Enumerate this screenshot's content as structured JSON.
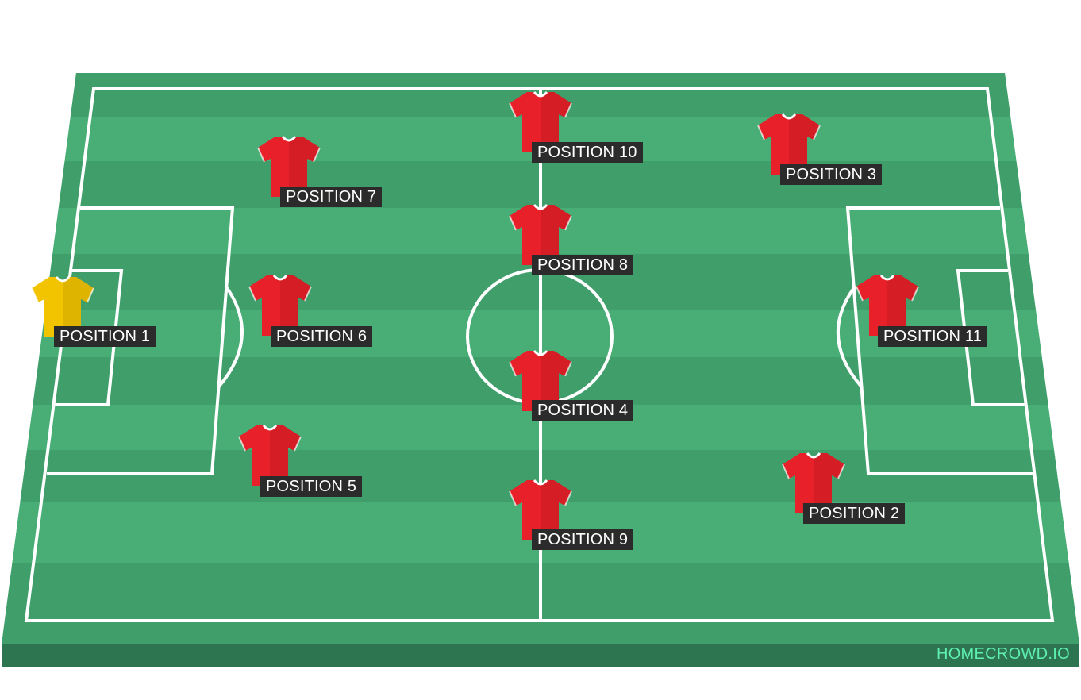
{
  "brand": "HOMECROWD.IO",
  "colors": {
    "grass_dark": "#3a9a66",
    "grass_light": "#4aae78",
    "border": "#5ac48a",
    "base": "#24684a",
    "lines": "#ffffff",
    "outfield_shirt": "#e8202a",
    "goalkeeper_shirt": "#f2c400",
    "label_bg": "#2b2b2b",
    "brand_text": "#5ef0b0"
  },
  "players": [
    {
      "id": "p1",
      "label": "POSITION 1",
      "shirt": "goalkeeper-shirt-icon",
      "color": "#f2c400"
    },
    {
      "id": "p2",
      "label": "POSITION 2",
      "shirt": "shirt-icon",
      "color": "#e8202a"
    },
    {
      "id": "p3",
      "label": "POSITION 3",
      "shirt": "shirt-icon",
      "color": "#e8202a"
    },
    {
      "id": "p4",
      "label": "POSITION 4",
      "shirt": "shirt-icon",
      "color": "#e8202a"
    },
    {
      "id": "p5",
      "label": "POSITION 5",
      "shirt": "shirt-icon",
      "color": "#e8202a"
    },
    {
      "id": "p6",
      "label": "POSITION 6",
      "shirt": "shirt-icon",
      "color": "#e8202a"
    },
    {
      "id": "p7",
      "label": "POSITION 7",
      "shirt": "shirt-icon",
      "color": "#e8202a"
    },
    {
      "id": "p8",
      "label": "POSITION 8",
      "shirt": "shirt-icon",
      "color": "#e8202a"
    },
    {
      "id": "p9",
      "label": "POSITION 9",
      "shirt": "shirt-icon",
      "color": "#e8202a"
    },
    {
      "id": "p10",
      "label": "POSITION 10",
      "shirt": "shirt-icon",
      "color": "#e8202a"
    },
    {
      "id": "p11",
      "label": "POSITION 11",
      "shirt": "shirt-icon",
      "color": "#e8202a"
    }
  ]
}
